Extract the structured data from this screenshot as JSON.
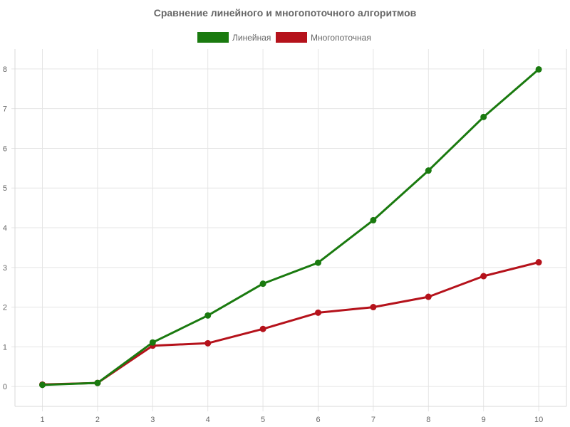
{
  "chart_data": {
    "type": "line",
    "title": "Сравнение линейного и многопоточного алгоритмов",
    "xlabel": "",
    "ylabel": "",
    "categories": [
      "1",
      "2",
      "3",
      "4",
      "5",
      "6",
      "7",
      "8",
      "9",
      "10"
    ],
    "x_ticks": [
      "1",
      "2",
      "3",
      "4",
      "5",
      "6",
      "7",
      "8",
      "9",
      "10"
    ],
    "y_ticks": [
      "0",
      "1",
      "2",
      "3",
      "4",
      "5",
      "6",
      "7",
      "8"
    ],
    "ylim": [
      -0.5,
      8.5
    ],
    "grid": true,
    "legend_position": "top-center",
    "series": [
      {
        "name": "Линейная",
        "color": "#1a7a0f",
        "values": [
          0.04,
          0.09,
          1.11,
          1.79,
          2.59,
          3.12,
          4.19,
          5.44,
          6.79,
          7.99
        ]
      },
      {
        "name": "Многопоточная",
        "color": "#b5121b",
        "values": [
          0.05,
          0.09,
          1.03,
          1.09,
          1.45,
          1.86,
          2.0,
          2.26,
          2.78,
          3.13
        ]
      }
    ]
  }
}
